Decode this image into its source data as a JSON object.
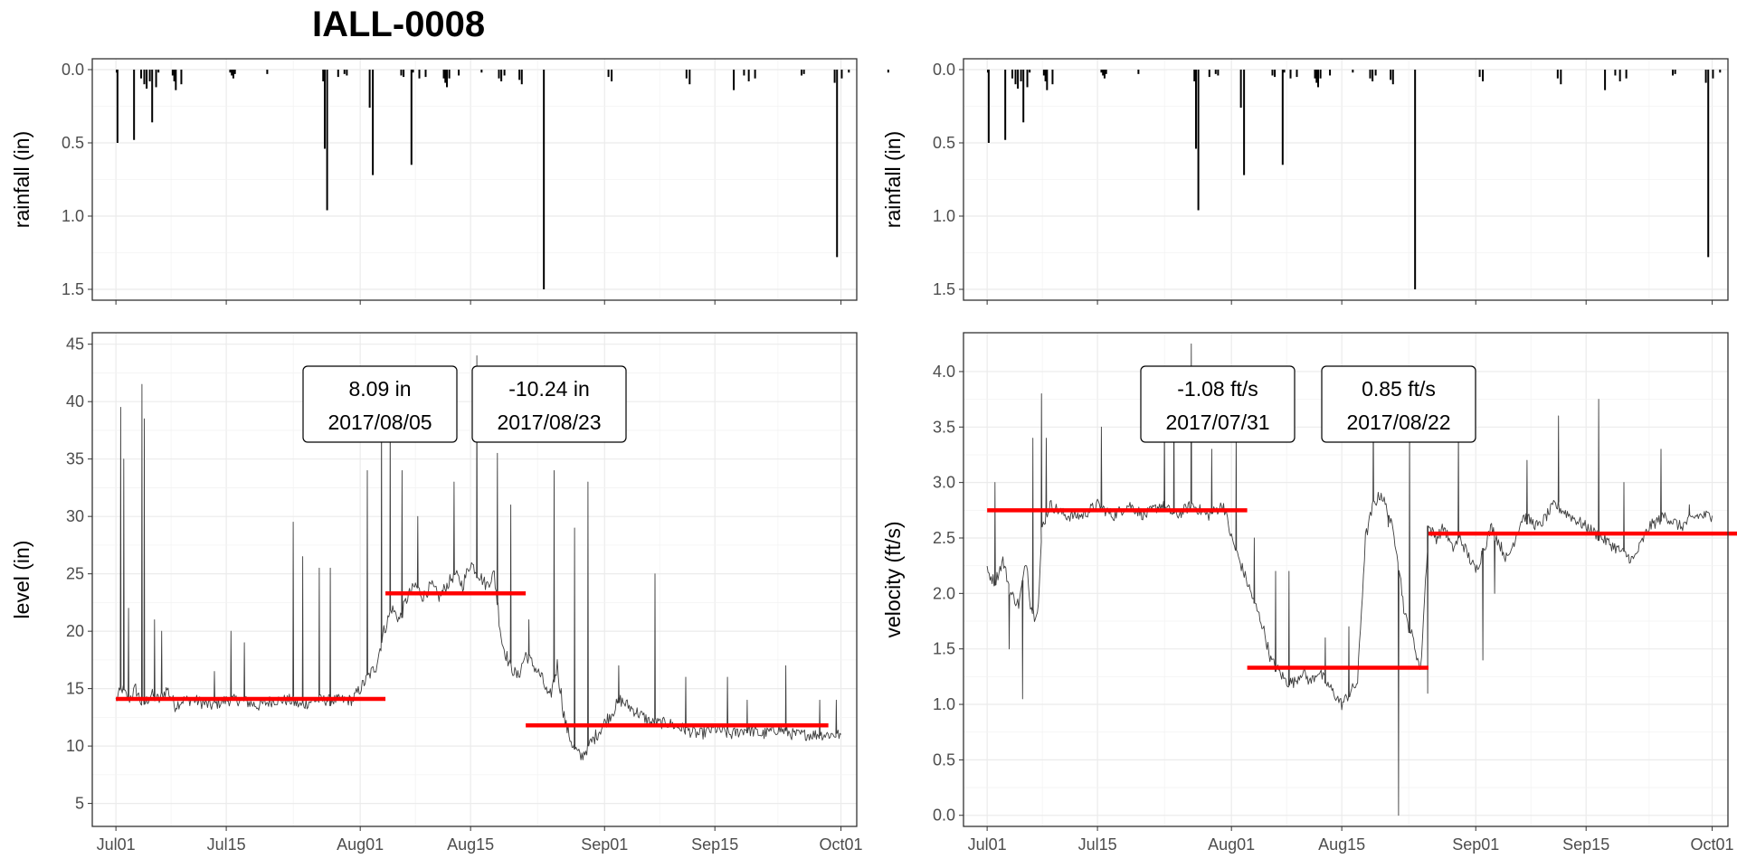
{
  "title": "IALL-0008",
  "chart_data": [
    {
      "id": "rain_left",
      "type": "bar",
      "ylabel": "rainfall (in)",
      "ylim": [
        0,
        1.5
      ],
      "y_reversed": true,
      "yticks": [
        "0.0",
        "0.5",
        "1.0",
        "1.5"
      ],
      "xlim": [
        "2017-06-28",
        "2017-10-03"
      ],
      "grid": true,
      "x_day": [
        0.1,
        0.2,
        2.3,
        3.2,
        3.6,
        3.9,
        4.3,
        4.6,
        5.1,
        5.4,
        7.2,
        7.4,
        7.6,
        8.3,
        14.5,
        14.7,
        14.9,
        15.1,
        19.2,
        26.3,
        26.5,
        26.8,
        28.2,
        29.0,
        29.3,
        32.2,
        32.6,
        36.2,
        36.5,
        37.5,
        37.7,
        38.5,
        39.3,
        41.6,
        41.8,
        42.0,
        42.3,
        43.5,
        46.4,
        48.6,
        48.9,
        49.3,
        51.2,
        51.5,
        54.3,
        62.5,
        62.9,
        72.4,
        72.8,
        78.4,
        79.7,
        80.3,
        81.1,
        87.0,
        87.3,
        91.2,
        91.5,
        92.1,
        93.0,
        98.0
      ],
      "values": [
        0.02,
        0.5,
        0.48,
        0.06,
        0.1,
        0.13,
        0.08,
        0.36,
        0.12,
        0.02,
        0.04,
        0.08,
        0.14,
        0.1,
        0.02,
        0.04,
        0.06,
        0.03,
        0.03,
        0.08,
        0.54,
        0.96,
        0.05,
        0.03,
        0.04,
        0.26,
        0.72,
        0.04,
        0.05,
        0.65,
        0.02,
        0.06,
        0.05,
        0.06,
        0.09,
        0.12,
        0.06,
        0.04,
        0.02,
        0.06,
        0.08,
        0.04,
        0.07,
        0.1,
        1.5,
        0.05,
        0.08,
        0.06,
        0.1,
        0.14,
        0.04,
        0.08,
        0.06,
        0.04,
        0.03,
        0.09,
        1.28,
        0.06,
        0.02,
        0.02
      ]
    },
    {
      "id": "level",
      "type": "line",
      "ylabel": "level (in)",
      "ylim": [
        3,
        46
      ],
      "yticks": [
        "5",
        "10",
        "15",
        "20",
        "25",
        "30",
        "35",
        "40",
        "45"
      ],
      "xlim": [
        "2017-06-28",
        "2017-10-03"
      ],
      "xticks": [
        "Jul01",
        "Jul15",
        "Aug01",
        "Aug15",
        "Sep01",
        "Sep15",
        "Oct01"
      ],
      "grid": true,
      "series": [
        {
          "x_day": [
            0,
            0.8,
            1.6,
            2.5,
            3.4,
            4.5,
            5.5,
            6.5,
            7.5,
            8.5,
            10,
            12,
            14,
            16,
            18,
            20,
            22,
            23.5,
            25,
            26.5,
            28,
            30,
            31,
            32,
            33,
            34,
            35,
            36,
            37,
            38,
            39,
            40,
            41,
            42,
            43,
            44,
            45,
            46,
            47,
            48,
            49,
            50,
            51,
            52,
            53,
            54,
            55,
            56,
            57,
            58,
            59,
            60,
            62,
            64,
            66,
            68,
            70,
            72,
            74,
            76,
            78,
            80,
            82,
            84,
            86,
            88,
            90,
            92
          ],
          "values": [
            14,
            15,
            14,
            15,
            13.5,
            14.5,
            14,
            15,
            13.5,
            14,
            14,
            13.5,
            14,
            14,
            13.5,
            14,
            14,
            13.5,
            14,
            14,
            14,
            14,
            15,
            16,
            17,
            20,
            22,
            21,
            23,
            24,
            23,
            24,
            23,
            24,
            25,
            24,
            26,
            25,
            24,
            25,
            19,
            17,
            16,
            18,
            17,
            16,
            14,
            17,
            12,
            10,
            9,
            10,
            12,
            14,
            13,
            12,
            12,
            11.5,
            11,
            11.5,
            11,
            11.5,
            11,
            11.5,
            11,
            11,
            11,
            11
          ]
        }
      ],
      "spikes": {
        "x_day": [
          0.6,
          1.0,
          1.6,
          3.3,
          3.6,
          4.9,
          5.8,
          12.5,
          14.6,
          16.3,
          22.5,
          23.7,
          25.8,
          27.2,
          31.9,
          33.7,
          34.8,
          36.3,
          38.3,
          42.9,
          45.8,
          48.4,
          50.1,
          52.4,
          55.6,
          58.2,
          59.9,
          63.8,
          68.4,
          72.3,
          77.6,
          80.1,
          85.0,
          89.3,
          91.4
        ],
        "values": [
          39.5,
          35,
          22,
          41.5,
          38.5,
          21,
          20,
          16.5,
          20,
          19,
          29.5,
          26.5,
          25.5,
          25.5,
          34,
          40,
          39,
          34,
          30,
          33,
          44,
          35.5,
          31,
          21,
          34,
          29,
          33,
          17,
          25,
          16,
          16,
          14,
          17,
          14,
          14
        ]
      },
      "segments": [
        {
          "start_day": 0,
          "end_day": 34.2,
          "value": 14.1
        },
        {
          "start_day": 34.2,
          "end_day": 52.0,
          "value": 23.3
        },
        {
          "start_day": 52.0,
          "end_day": 90.4,
          "value": 11.8
        }
      ],
      "annotations": [
        {
          "line1": "8.09 in",
          "line2": "2017/08/05"
        },
        {
          "line1": "-10.24 in",
          "line2": "2017/08/23"
        }
      ]
    },
    {
      "id": "rain_right",
      "type": "bar",
      "ylabel": "rainfall (in)",
      "ylim": [
        0,
        1.5
      ],
      "y_reversed": true,
      "yticks": [
        "0.0",
        "0.5",
        "1.0",
        "1.5"
      ],
      "xlim": [
        "2017-06-28",
        "2017-10-03"
      ],
      "grid": true,
      "x_day": [
        0.1,
        0.2,
        2.3,
        3.2,
        3.6,
        3.9,
        4.3,
        4.6,
        5.1,
        5.4,
        7.2,
        7.4,
        7.6,
        8.3,
        14.5,
        14.7,
        14.9,
        15.1,
        19.2,
        26.3,
        26.5,
        26.8,
        28.2,
        29.0,
        29.3,
        32.2,
        32.6,
        36.2,
        36.5,
        37.5,
        37.7,
        38.5,
        39.3,
        41.6,
        41.8,
        42.0,
        42.3,
        43.5,
        46.4,
        48.6,
        48.9,
        49.3,
        51.2,
        51.5,
        54.3,
        62.5,
        62.9,
        72.4,
        72.8,
        78.4,
        79.7,
        80.3,
        81.1,
        87.0,
        87.3,
        91.2,
        91.5,
        92.1,
        93.0,
        98.0
      ],
      "values": [
        0.02,
        0.5,
        0.48,
        0.06,
        0.1,
        0.13,
        0.08,
        0.36,
        0.12,
        0.02,
        0.04,
        0.08,
        0.14,
        0.1,
        0.02,
        0.04,
        0.06,
        0.03,
        0.03,
        0.08,
        0.54,
        0.96,
        0.05,
        0.03,
        0.04,
        0.26,
        0.72,
        0.04,
        0.05,
        0.65,
        0.02,
        0.06,
        0.05,
        0.06,
        0.09,
        0.12,
        0.06,
        0.04,
        0.02,
        0.06,
        0.08,
        0.04,
        0.07,
        0.1,
        1.5,
        0.05,
        0.08,
        0.06,
        0.1,
        0.14,
        0.04,
        0.08,
        0.06,
        0.04,
        0.03,
        0.09,
        1.28,
        0.06,
        0.02,
        0.02
      ]
    },
    {
      "id": "velocity",
      "type": "line",
      "ylabel": "velocity (ft/s)",
      "ylim": [
        -0.1,
        4.35
      ],
      "yticks": [
        "0.0",
        "0.5",
        "1.0",
        "1.5",
        "2.0",
        "2.5",
        "3.0",
        "3.5",
        "4.0"
      ],
      "xlim": [
        "2017-06-28",
        "2017-10-03"
      ],
      "xticks": [
        "Jul01",
        "Jul15",
        "Aug01",
        "Aug15",
        "Sep01",
        "Sep15",
        "Oct01"
      ],
      "grid": true,
      "series": [
        {
          "x_day": [
            0,
            1,
            2,
            3,
            4,
            5,
            5.5,
            6,
            6.5,
            7,
            8,
            10,
            12,
            14,
            16,
            18,
            20,
            22,
            24,
            26,
            28,
            30,
            31,
            32,
            33,
            34,
            35,
            36,
            37,
            38,
            39,
            40,
            41,
            42,
            43,
            44,
            45,
            46,
            47,
            48,
            49,
            50,
            51,
            52,
            53,
            54,
            55,
            56,
            57,
            58,
            59,
            60,
            62,
            64,
            66,
            68,
            70,
            72,
            74,
            76,
            78,
            80,
            82,
            84,
            86,
            88,
            90,
            92
          ],
          "values": [
            2.2,
            2.1,
            2.3,
            2.0,
            1.9,
            2.3,
            1.9,
            1.8,
            1.9,
            2.6,
            2.8,
            2.7,
            2.7,
            2.8,
            2.7,
            2.8,
            2.7,
            2.8,
            2.7,
            2.8,
            2.7,
            2.8,
            2.5,
            2.3,
            2.1,
            1.9,
            1.7,
            1.4,
            1.3,
            1.2,
            1.2,
            1.3,
            1.2,
            1.3,
            1.2,
            1.1,
            1.0,
            1.1,
            1.2,
            2.5,
            2.8,
            2.9,
            2.7,
            2.4,
            1.8,
            1.6,
            1.3,
            2.6,
            2.5,
            2.6,
            2.4,
            2.5,
            2.2,
            2.6,
            2.3,
            2.7,
            2.6,
            2.8,
            2.7,
            2.6,
            2.5,
            2.4,
            2.3,
            2.6,
            2.7,
            2.6,
            2.7,
            2.7
          ]
        }
      ],
      "spikes": {
        "x_day": [
          1.0,
          2.8,
          4.5,
          5.8,
          6.9,
          7.5,
          14.5,
          22.5,
          23.7,
          25.9,
          28.5,
          31.6,
          33.9,
          36.6,
          38.3,
          42.9,
          45.9,
          49.0,
          50.9,
          52.2,
          53.6,
          55.9,
          59.8,
          62.9,
          64.4,
          68.5,
          72.5,
          77.6,
          80.8,
          85.5,
          89.1
        ],
        "values": [
          3.0,
          1.5,
          1.05,
          3.4,
          3.8,
          3.4,
          3.5,
          3.6,
          3.9,
          4.25,
          3.3,
          3.5,
          2.5,
          2.2,
          2.2,
          1.6,
          1.7,
          3.7,
          2.6,
          0.0,
          3.5,
          1.1,
          3.5,
          1.4,
          2.0,
          3.2,
          3.6,
          3.75,
          3.0,
          3.3,
          2.8
        ]
      },
      "segments": [
        {
          "start_day": 0,
          "end_day": 33.0,
          "value": 2.75
        },
        {
          "start_day": 33.0,
          "end_day": 56.0,
          "value": 1.33
        },
        {
          "start_day": 56.0,
          "end_day": 98.5,
          "value": 2.54
        }
      ],
      "annotations": [
        {
          "line1": "-1.08 ft/s",
          "line2": "2017/07/31"
        },
        {
          "line1": "0.85 ft/s",
          "line2": "2017/08/22"
        }
      ]
    }
  ]
}
